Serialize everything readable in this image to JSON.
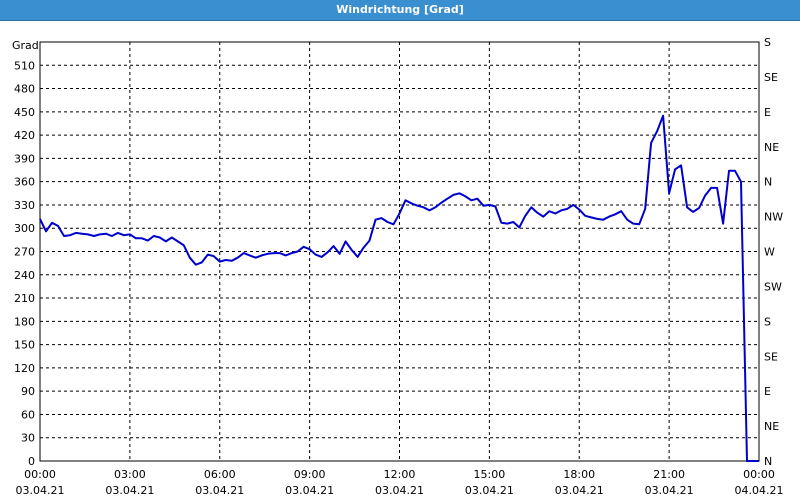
{
  "window": {
    "title": "Windrichtung [Grad]"
  },
  "chart_data": {
    "type": "line",
    "title": "Windrichtung [Grad]",
    "ylabel": "Grad",
    "ylim": [
      0,
      540
    ],
    "y_ticks": [
      0,
      30,
      60,
      90,
      120,
      150,
      180,
      210,
      240,
      270,
      300,
      330,
      360,
      390,
      420,
      450,
      480,
      510
    ],
    "right_ticks": [
      "N",
      "NE",
      "E",
      "SE",
      "S",
      "SW",
      "W",
      "NW",
      "N",
      "NE",
      "E",
      "SE",
      "S"
    ],
    "x_ticks": [
      {
        "time": "00:00",
        "date": "03.04.21"
      },
      {
        "time": "03:00",
        "date": "03.04.21"
      },
      {
        "time": "06:00",
        "date": "03.04.21"
      },
      {
        "time": "09:00",
        "date": "03.04.21"
      },
      {
        "time": "12:00",
        "date": "03.04.21"
      },
      {
        "time": "15:00",
        "date": "03.04.21"
      },
      {
        "time": "18:00",
        "date": "03.04.21"
      },
      {
        "time": "21:00",
        "date": "03.04.21"
      },
      {
        "time": "00:00",
        "date": "04.04.21"
      }
    ],
    "xlim_hours": [
      0,
      24
    ],
    "grid": true,
    "line_color": "#0000cc",
    "series": [
      {
        "x_hours": [
          0,
          0.2,
          0.4,
          0.6,
          0.8,
          1.0,
          1.2,
          1.4,
          1.6,
          1.8,
          2.0,
          2.2,
          2.4,
          2.6,
          2.8,
          3.0,
          3.2,
          3.4,
          3.6,
          3.8,
          4.0,
          4.2,
          4.4,
          4.6,
          4.8,
          5.0,
          5.2,
          5.4,
          5.6,
          5.8,
          6.0,
          6.2,
          6.4,
          6.6,
          6.8,
          7.0,
          7.2,
          7.4,
          7.6,
          7.8,
          8.0,
          8.2,
          8.4,
          8.6,
          8.8,
          9.0,
          9.2,
          9.4,
          9.6,
          9.8,
          10.0,
          10.2,
          10.4,
          10.6,
          10.8,
          11.0,
          11.2,
          11.4,
          11.6,
          11.8,
          12.0,
          12.2,
          12.4,
          12.6,
          12.8,
          13.0,
          13.2,
          13.4,
          13.6,
          13.8,
          14.0,
          14.2,
          14.4,
          14.6,
          14.8,
          15.0,
          15.2,
          15.4,
          15.6,
          15.8,
          16.0,
          16.2,
          16.4,
          16.6,
          16.8,
          17.0,
          17.2,
          17.4,
          17.6,
          17.8,
          18.0,
          18.2,
          18.4,
          18.6,
          18.8,
          19.0,
          19.2,
          19.4,
          19.6,
          19.8,
          20.0,
          20.2,
          20.4,
          20.6,
          20.8,
          21.0,
          21.2,
          21.4,
          21.6,
          21.8,
          22.0,
          22.2,
          22.4,
          22.6,
          22.8,
          23.0,
          23.2,
          23.4,
          23.6,
          23.8,
          24.0
        ],
        "values": [
          312,
          296,
          307,
          303,
          290,
          291,
          294,
          293,
          292,
          290,
          292,
          293,
          290,
          294,
          291,
          292,
          287,
          287,
          284,
          290,
          288,
          283,
          288,
          283,
          278,
          262,
          253,
          256,
          266,
          264,
          257,
          259,
          258,
          262,
          268,
          265,
          262,
          265,
          267,
          268,
          268,
          265,
          268,
          270,
          276,
          273,
          266,
          263,
          269,
          277,
          267,
          283,
          272,
          263,
          275,
          284,
          311,
          313,
          308,
          305,
          319,
          336,
          332,
          329,
          327,
          323,
          327,
          333,
          338,
          343,
          345,
          341,
          336,
          338,
          329,
          330,
          328,
          307,
          306,
          308,
          301,
          316,
          327,
          320,
          315,
          322,
          319,
          323,
          325,
          330,
          324,
          316,
          314,
          312,
          311,
          315,
          318,
          322,
          311,
          306,
          305,
          325,
          410,
          425,
          445,
          345,
          376,
          381,
          327,
          321,
          326,
          342,
          352,
          352,
          306,
          374,
          374,
          360,
          0,
          0,
          0
        ]
      }
    ]
  }
}
